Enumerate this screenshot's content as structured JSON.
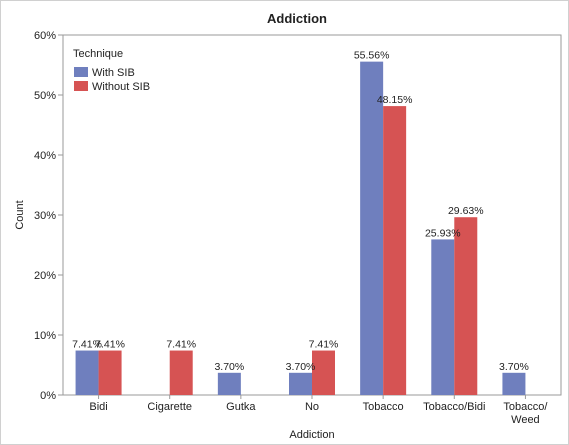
{
  "chart_data": {
    "type": "bar",
    "title": "Addiction",
    "xlabel": "Addiction",
    "ylabel": "Count",
    "ylim": [
      0,
      60
    ],
    "yticks": [
      "0%",
      "10%",
      "20%",
      "30%",
      "40%",
      "50%",
      "60%"
    ],
    "categories": [
      [
        "Bidi"
      ],
      [
        "Cigarette"
      ],
      [
        "Gutka"
      ],
      [
        "No"
      ],
      [
        "Tobacco"
      ],
      [
        "Tobacco/Bidi"
      ],
      [
        "Tobacco/",
        "Weed"
      ]
    ],
    "legend": {
      "title": "Technique",
      "placement": "top-left"
    },
    "series": [
      {
        "name": "With SIB",
        "color": "#6f7fbe",
        "values": [
          7.41,
          null,
          3.7,
          3.7,
          55.56,
          25.93,
          3.7
        ],
        "labels": [
          "7.41%",
          "",
          "3.70%",
          "3.70%",
          "55.56%",
          "25.93%",
          "3.70%"
        ]
      },
      {
        "name": "Without SIB",
        "color": "#d65353",
        "values": [
          7.41,
          7.41,
          null,
          7.41,
          48.15,
          29.63,
          null
        ],
        "labels": [
          "7.41%",
          "7.41%",
          "",
          "7.41%",
          "48.15%",
          "29.63%",
          ""
        ]
      }
    ]
  }
}
